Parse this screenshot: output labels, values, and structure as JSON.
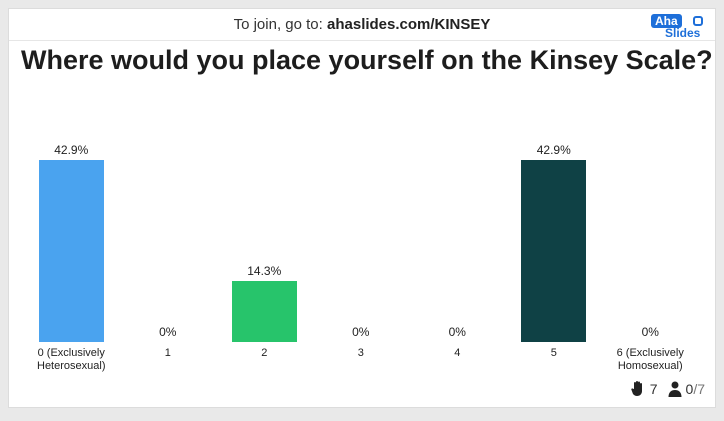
{
  "header": {
    "prefix": "To join, go to: ",
    "url": "ahaslides.com/KINSEY",
    "logo_top": "Aha",
    "logo_bottom": "Slides"
  },
  "title": "Where would you place yourself on the Kinsey Scale?",
  "chart_data": {
    "type": "bar",
    "categories": [
      "0 (Exclusively Heterosexual)",
      "1",
      "2",
      "3",
      "4",
      "5",
      "6 (Exclusively Homosexual)"
    ],
    "values": [
      42.9,
      0,
      14.3,
      0,
      0,
      42.9,
      0
    ],
    "value_labels": [
      "42.9%",
      "0%",
      "14.3%",
      "0%",
      "0%",
      "42.9%",
      "0%"
    ],
    "colors": [
      "#4aa3ef",
      "#4aa3ef",
      "#27c46b",
      "#27c46b",
      "#27c46b",
      "#0f4145",
      "#0f4145"
    ],
    "ylim": [
      0,
      42.9
    ],
    "grid": false,
    "legend": "none"
  },
  "footer": {
    "responses": "7",
    "participants": "0",
    "participants_total": "/7"
  }
}
